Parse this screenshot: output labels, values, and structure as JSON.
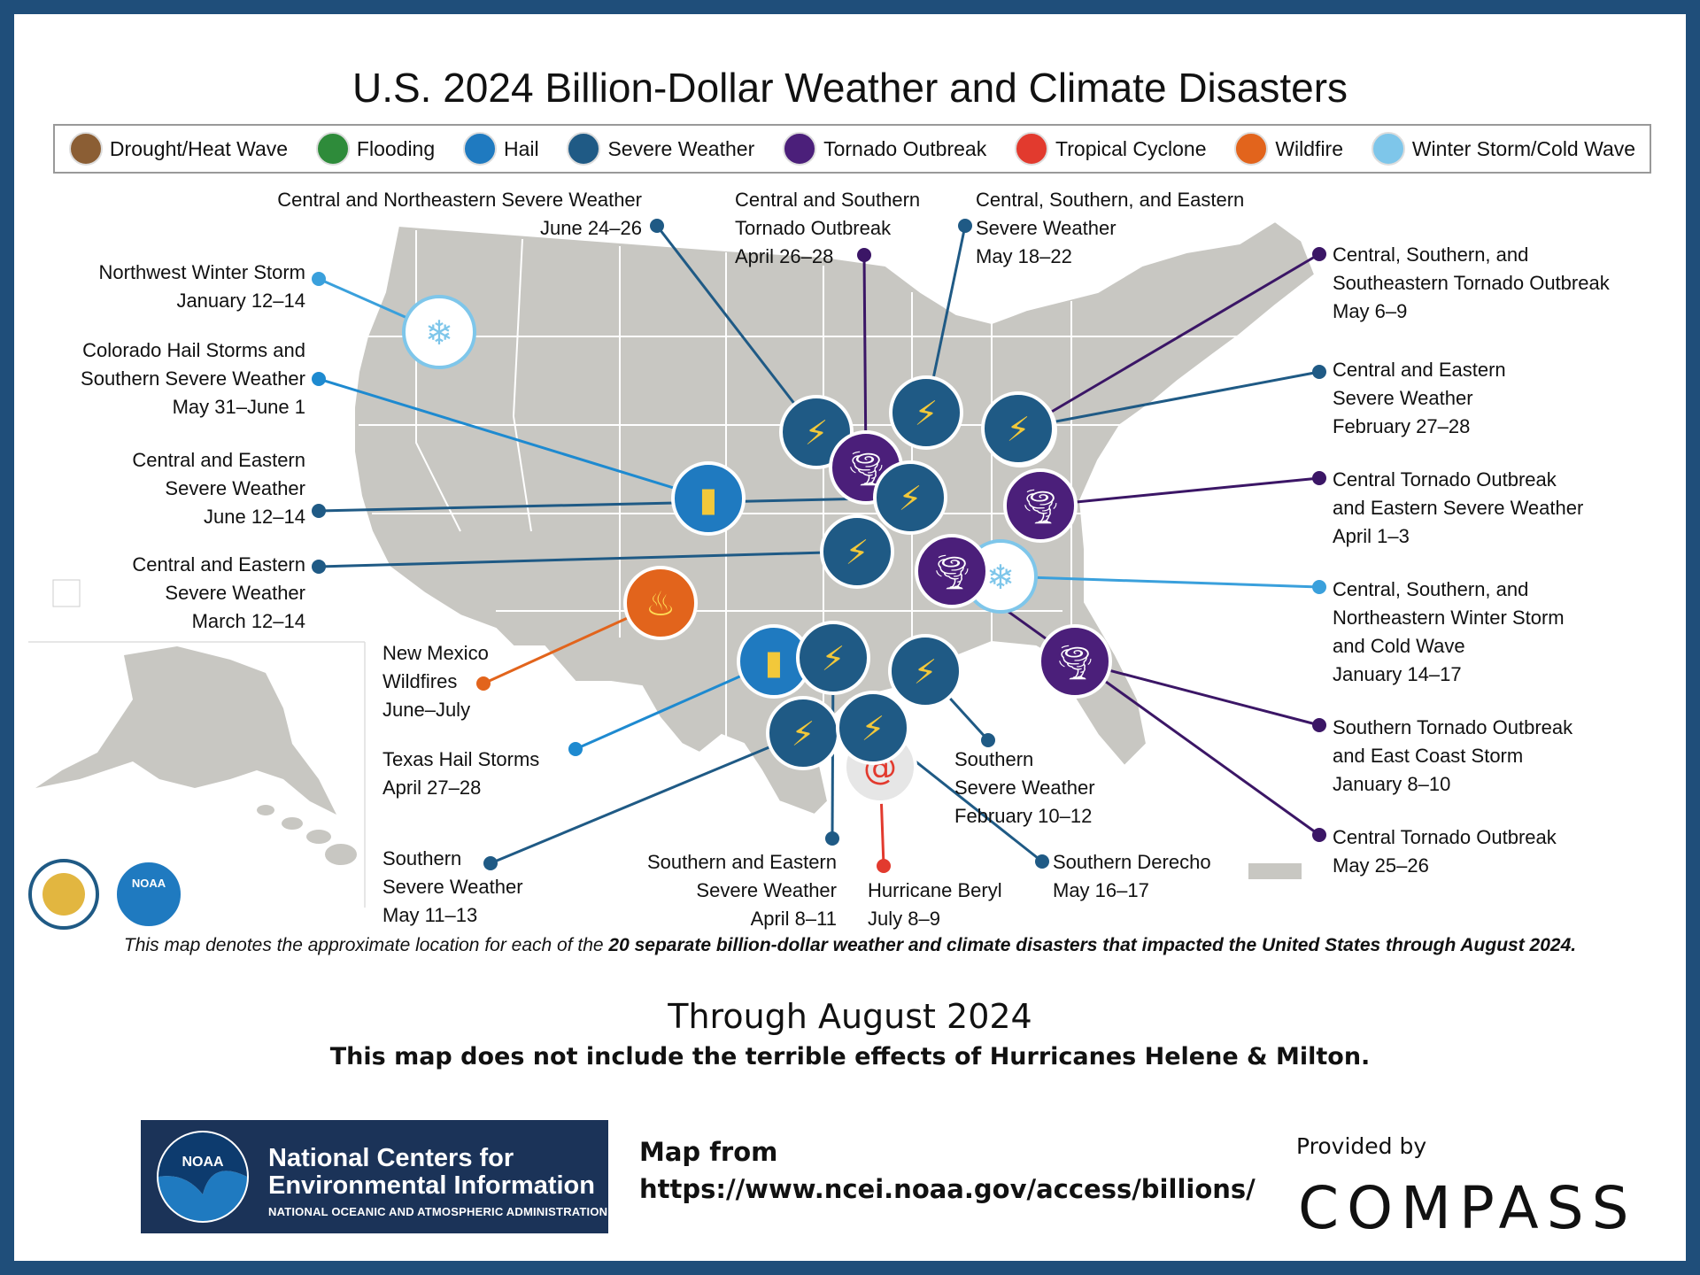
{
  "title": "U.S. 2024 Billion-Dollar Weather and Climate Disasters",
  "legend": [
    {
      "label": "Drought/Heat Wave",
      "icon": "drought-icon",
      "color": "#8b5e34"
    },
    {
      "label": "Flooding",
      "icon": "flooding-icon",
      "color": "#2e8b3a"
    },
    {
      "label": "Hail",
      "icon": "hail-icon",
      "color": "#1f7ac0"
    },
    {
      "label": "Severe Weather",
      "icon": "severe-weather-icon",
      "color": "#1f5a85"
    },
    {
      "label": "Tornado Outbreak",
      "icon": "tornado-icon",
      "color": "#4b1f7a"
    },
    {
      "label": "Tropical Cyclone",
      "icon": "tropical-cyclone-icon",
      "color": "#e23a2e"
    },
    {
      "label": "Wildfire",
      "icon": "wildfire-icon",
      "color": "#e2641c"
    },
    {
      "label": "Winter Storm/Cold Wave",
      "icon": "winter-storm-icon",
      "color": "#7ec6ea"
    }
  ],
  "events": [
    {
      "lines": [
        "Central and Northeastern Severe Weather",
        "June 24–26"
      ],
      "type": "Severe Weather"
    },
    {
      "lines": [
        "Central and Southern",
        "Tornado Outbreak",
        "April 26–28"
      ],
      "type": "Tornado Outbreak"
    },
    {
      "lines": [
        "Central, Southern, and Eastern",
        "Severe Weather",
        "May 18–22"
      ],
      "type": "Severe Weather"
    },
    {
      "lines": [
        "Central, Southern, and",
        "Southeastern Tornado Outbreak",
        "May 6–9"
      ],
      "type": "Tornado Outbreak"
    },
    {
      "lines": [
        "Northwest Winter Storm",
        "January 12–14"
      ],
      "type": "Winter Storm/Cold Wave"
    },
    {
      "lines": [
        "Colorado Hail Storms and",
        "Southern Severe Weather",
        "May 31–June 1"
      ],
      "type": "Hail"
    },
    {
      "lines": [
        "Central and Eastern",
        "Severe Weather",
        "February 27–28"
      ],
      "type": "Severe Weather"
    },
    {
      "lines": [
        "Central and Eastern",
        "Severe Weather",
        "June 12–14"
      ],
      "type": "Severe Weather"
    },
    {
      "lines": [
        "Central Tornado Outbreak",
        "and Eastern Severe Weather",
        "April 1–3"
      ],
      "type": "Tornado Outbreak"
    },
    {
      "lines": [
        "Central and Eastern",
        "Severe Weather",
        "March 12–14"
      ],
      "type": "Severe Weather"
    },
    {
      "lines": [
        "Central, Southern, and",
        "Northeastern Winter Storm",
        "and Cold Wave",
        "January 14–17"
      ],
      "type": "Winter Storm/Cold Wave"
    },
    {
      "lines": [
        "New Mexico",
        "Wildfires",
        "June–July"
      ],
      "type": "Wildfire"
    },
    {
      "lines": [
        "Southern Tornado Outbreak",
        "and East Coast Storm",
        "January 8–10"
      ],
      "type": "Tornado Outbreak"
    },
    {
      "lines": [
        "Texas Hail Storms",
        "April 27–28"
      ],
      "type": "Hail"
    },
    {
      "lines": [
        "Southern",
        "Severe Weather",
        "February 10–12"
      ],
      "type": "Severe Weather"
    },
    {
      "lines": [
        "Central Tornado Outbreak",
        "May 25–26"
      ],
      "type": "Tornado Outbreak"
    },
    {
      "lines": [
        "Southern",
        "Severe Weather",
        "May 11–13"
      ],
      "type": "Severe Weather"
    },
    {
      "lines": [
        "Southern and Eastern",
        "Severe Weather",
        "April 8–11"
      ],
      "type": "Severe Weather"
    },
    {
      "lines": [
        "Hurricane Beryl",
        "July 8–9"
      ],
      "type": "Tropical Cyclone"
    },
    {
      "lines": [
        "Southern Derecho",
        "May 16–17"
      ],
      "type": "Severe Weather"
    }
  ],
  "note": {
    "prefix": "This map denotes the approximate location for each of the ",
    "bold": "20 separate billion-dollar weather and climate disasters that impacted the United States through August 2024."
  },
  "through": "Through August 2024",
  "exclude": "This map does not include the terrible effects of Hurricanes Helene & Milton.",
  "ncei": {
    "logo_text": "NOAA",
    "line1": "National Centers for",
    "line2": "Environmental Information",
    "line3": "NATIONAL OCEANIC AND ATMOSPHERIC ADMINISTRATION"
  },
  "map_from": {
    "label": "Map from",
    "url": "https://www.ncei.noaa.gov/access/billions/"
  },
  "provided_by": "Provided by",
  "compass": "COMPASS",
  "seal_logo": "NOAA"
}
